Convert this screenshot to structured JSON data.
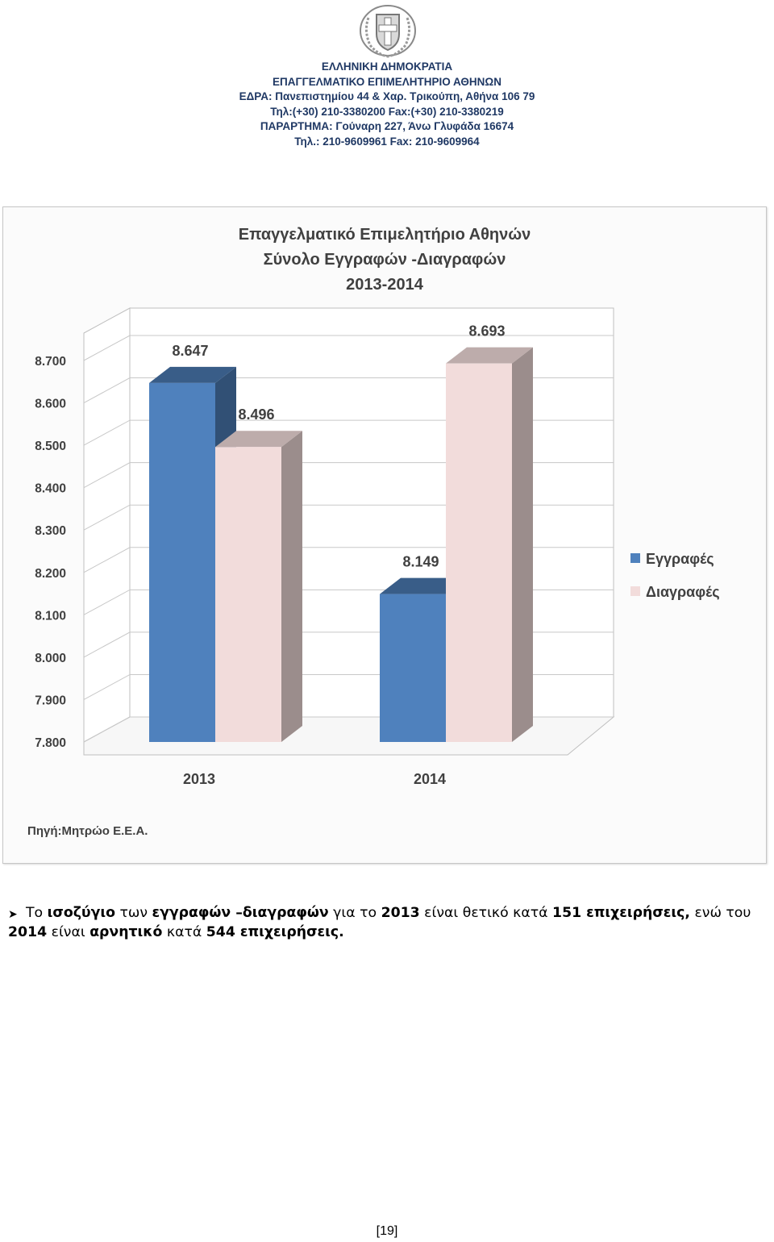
{
  "header": {
    "lines": [
      "ΕΛΛΗΝΙΚΗ ΔΗΜΟΚΡΑΤΙΑ",
      "ΕΠΑΓΓΕΛΜΑΤΙΚΟ ΕΠΙΜΕΛΗΤΗΡΙΟ ΑΘΗΝΩΝ",
      "ΕΔΡΑ: Πανεπιστημίου 44 & Χαρ. Τρικούπη, Αθήνα 106 79",
      "Τηλ:(+30) 210-3380200 Fax:(+30) 210-3380219",
      "ΠΑΡΑΡΤΗΜΑ: Γούναρη 227, Άνω Γλυφάδα 16674",
      "Τηλ.: 210-9609961 Fax: 210-9609964"
    ]
  },
  "chart_data": {
    "type": "bar",
    "style": "3d-clustered-column",
    "title_lines": [
      "Επαγγελματικό Επιμελητήριο Αθηνών",
      "Σύνολο Εγγραφών -Διαγραφών",
      "2013-2014"
    ],
    "categories": [
      "2013",
      "2014"
    ],
    "series": [
      {
        "name": "Εγγραφές",
        "values": [
          8647,
          8149
        ],
        "labels": [
          "8.647",
          "8.149"
        ],
        "color": "#4f81bd"
      },
      {
        "name": "Διαγραφές",
        "values": [
          8496,
          8693
        ],
        "labels": [
          "8.496",
          "8.693"
        ],
        "color": "#f2dcdb"
      }
    ],
    "ylim": [
      7800,
      8700
    ],
    "yticks": [
      "7.800",
      "7.900",
      "8.000",
      "8.100",
      "8.200",
      "8.300",
      "8.400",
      "8.500",
      "8.600",
      "8.700"
    ],
    "grid": true,
    "legend_position": "right",
    "source": "Πηγή:Μητρώο Ε.Ε.Α."
  },
  "summary": {
    "t1": "Το ",
    "b1": "ισοζύγιο",
    "t2": " των ",
    "b2": "εγγραφών –διαγραφών",
    "t3": " για το ",
    "b3": "2013",
    "t4": " είναι θετικό κατά ",
    "b4": "151 επιχειρήσεις,",
    "t5": " ενώ του",
    "b5": "2014",
    "t6": " είναι ",
    "b6": "αρνητικό",
    "t7": " κατά ",
    "b7": "544 επιχειρήσεις."
  },
  "page_number": "[19]"
}
